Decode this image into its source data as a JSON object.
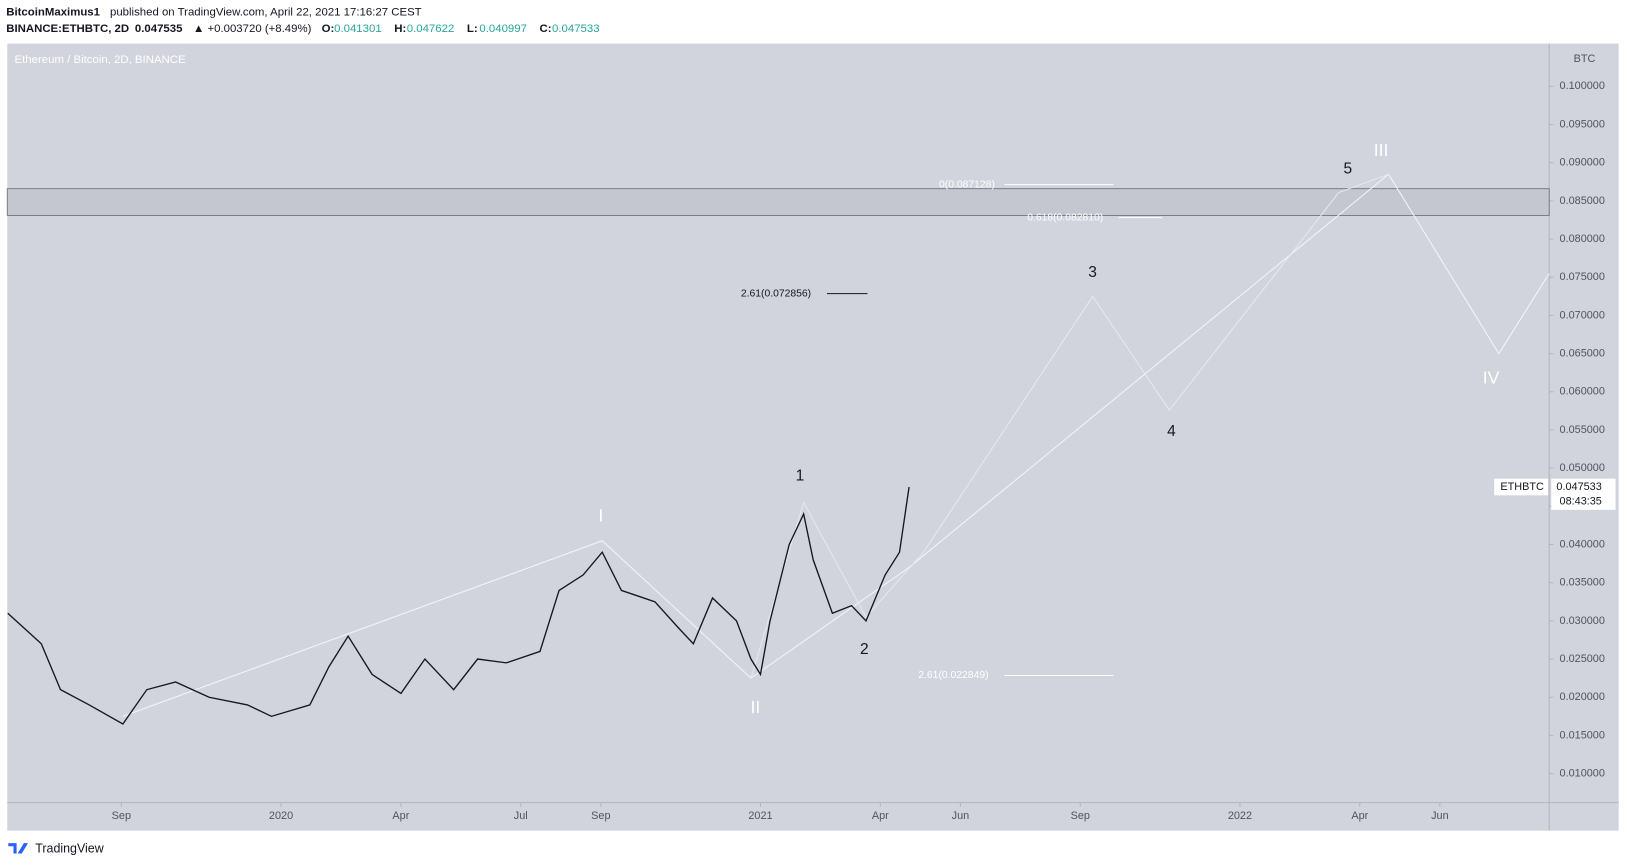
{
  "header": {
    "author": "BitcoinMaximus1",
    "published": "published on TradingView.com, April 22, 2021 17:16:27 CEST",
    "symbol": "BINANCE:ETHBTC, 2D",
    "last": "0.047535",
    "change": "▲ +0.003720 (+8.49%)",
    "ohlc": [
      {
        "label": "O:",
        "value": "0.041301"
      },
      {
        "label": "H:",
        "value": "0.047622"
      },
      {
        "label": "L:",
        "value": "0.040997"
      },
      {
        "label": "C:",
        "value": "0.047533"
      }
    ]
  },
  "footer": "TradingView",
  "chart_data": {
    "type": "line",
    "legend_text": "Ethereum / Bitcoin, 2D, BINANCE",
    "y_unit": "BTC",
    "xlim": [
      2019.429,
      2022.645
    ],
    "ylim": [
      0.0062,
      0.1056
    ],
    "xticks": [
      {
        "value": 2019.667,
        "label": "Sep"
      },
      2020,
      {
        "value": 2020.25,
        "label": "Apr"
      },
      {
        "value": 2020.5,
        "label": "Jul"
      },
      {
        "value": 2020.667,
        "label": "Sep"
      },
      2021,
      {
        "value": 2021.25,
        "label": "Apr"
      },
      {
        "value": 2021.417,
        "label": "Jun"
      },
      {
        "value": 2021.667,
        "label": "Sep"
      },
      2022,
      {
        "value": 2022.25,
        "label": "Apr"
      },
      {
        "value": 2022.417,
        "label": "Jun"
      }
    ],
    "yticks": [
      {
        "value": 0.01,
        "label": "0.010000"
      },
      {
        "value": 0.015,
        "label": "0.015000"
      },
      {
        "value": 0.02,
        "label": "0.020000"
      },
      {
        "value": 0.025,
        "label": "0.025000"
      },
      {
        "value": 0.03,
        "label": "0.030000"
      },
      {
        "value": 0.035,
        "label": "0.035000"
      },
      {
        "value": 0.04,
        "label": "0.040000"
      },
      {
        "value": 0.045,
        "label": "0.045000"
      },
      {
        "value": 0.05,
        "label": "0.050000"
      },
      {
        "value": 0.055,
        "label": "0.055000"
      },
      {
        "value": 0.06,
        "label": "0.060000"
      },
      {
        "value": 0.065,
        "label": "0.065000"
      },
      {
        "value": 0.07,
        "label": "0.070000"
      },
      {
        "value": 0.075,
        "label": "0.075000"
      },
      {
        "value": 0.08,
        "label": "0.080000"
      },
      {
        "value": 0.085,
        "label": "0.085000"
      },
      {
        "value": 0.09,
        "label": "0.090000"
      },
      {
        "value": 0.095,
        "label": "0.095000"
      },
      {
        "value": 0.1,
        "label": "0.100000"
      }
    ],
    "series": [
      {
        "name": "ETHBTC",
        "color": "#131722",
        "x": [
          2019.43,
          2019.5,
          2019.54,
          2019.6,
          2019.67,
          2019.72,
          2019.78,
          2019.85,
          2019.93,
          2019.98,
          2020.06,
          2020.1,
          2020.14,
          2020.19,
          2020.25,
          2020.3,
          2020.36,
          2020.41,
          2020.47,
          2020.54,
          2020.58,
          2020.63,
          2020.67,
          2020.71,
          2020.78,
          2020.83,
          2020.86,
          2020.9,
          2020.95,
          2020.98,
          2021.0,
          2021.02,
          2021.06,
          2021.09,
          2021.11,
          2021.15,
          2021.19,
          2021.22,
          2021.26,
          2021.29,
          2021.31
        ],
        "values": [
          0.031,
          0.027,
          0.021,
          0.019,
          0.0165,
          0.021,
          0.022,
          0.02,
          0.019,
          0.0175,
          0.019,
          0.024,
          0.028,
          0.023,
          0.0205,
          0.025,
          0.021,
          0.025,
          0.0245,
          0.026,
          0.034,
          0.036,
          0.039,
          0.034,
          0.0325,
          0.029,
          0.027,
          0.033,
          0.03,
          0.025,
          0.023,
          0.03,
          0.04,
          0.044,
          0.038,
          0.031,
          0.032,
          0.03,
          0.036,
          0.039,
          0.047533
        ]
      },
      {
        "color": "#f4f5f8",
        "x": [
          2019.67,
          2020.67,
          2020.98,
          2021.31,
          2022.31,
          2022.54,
          2022.645
        ],
        "values": [
          0.0175,
          0.0405,
          0.0225,
          0.037,
          0.0885,
          0.065,
          0.0755
        ]
      },
      {
        "color": "#e6e8ee",
        "x": [
          2020.98,
          2021.09,
          2021.22,
          2021.34,
          2021.693,
          2021.853,
          2022.206,
          2022.31
        ],
        "values": [
          0.0225,
          0.0455,
          0.0305,
          0.039,
          0.0725,
          0.0576,
          0.0861,
          0.0885
        ]
      }
    ],
    "zone": [
      0.0831,
      0.0866
    ],
    "levels": [
      {
        "label": "0(0.087128)",
        "value": 0.087128,
        "color": "#ffffff"
      },
      {
        "label": "0.618(0.082810)",
        "value": 0.08281,
        "color": "#ffffff"
      },
      {
        "label": "2.61(0.072856)",
        "value": 0.072856,
        "color": "#131722"
      },
      {
        "label": "2.61(0.022849)",
        "value": 0.022849,
        "color": "#ffffff"
      }
    ],
    "wave_labels": [
      "I",
      "II",
      "III",
      "IV",
      "1",
      "2",
      "3",
      "4",
      "5"
    ],
    "countdown": "08:43:35"
  }
}
